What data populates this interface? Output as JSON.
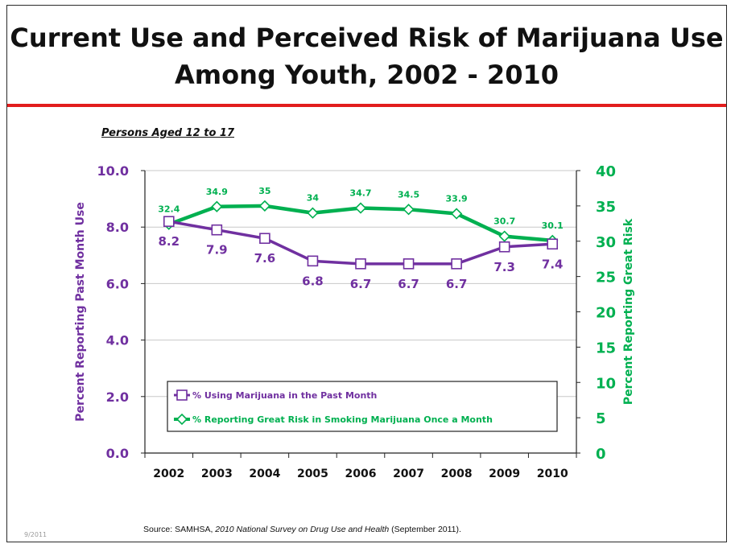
{
  "title_line1": "Current Use and Perceived Risk of Marijuana Use",
  "title_line2": "Among Youth, 2002 - 2010",
  "subtitle": "Persons Aged 12 to 17",
  "source_prefix": "Source:   SAMHSA, ",
  "source_title": "2010 National Survey on Drug Use and Health",
  "source_suffix": " (September 2011).",
  "date_stamp": "9/2011",
  "colors": {
    "purple": "#7030a0",
    "green": "#00b050",
    "gridline": "#c8c8c8",
    "title_rule": "#e21d1d"
  },
  "chart_data": {
    "type": "line",
    "categories": [
      "2002",
      "2003",
      "2004",
      "2005",
      "2006",
      "2007",
      "2008",
      "2009",
      "2010"
    ],
    "ylabel_left": "Percent Reporting Past Month Use",
    "ylabel_right": "Percent Reporting Great Risk",
    "left_axis": {
      "min": 0,
      "max": 10,
      "ticks": [
        "0.0",
        "2.0",
        "4.0",
        "6.0",
        "8.0",
        "10.0"
      ]
    },
    "right_axis": {
      "min": 0,
      "max": 40,
      "ticks": [
        "0",
        "5",
        "10",
        "15",
        "20",
        "25",
        "30",
        "35",
        "40"
      ]
    },
    "grid": true,
    "legend_position": "lower-left",
    "series": [
      {
        "name": "% Using Marijuana in the Past Month",
        "axis": "left",
        "marker": "square",
        "color": "#7030a0",
        "values": [
          8.2,
          7.9,
          7.6,
          6.8,
          6.7,
          6.7,
          6.7,
          7.3,
          7.4
        ],
        "labels": [
          "8.2",
          "7.9",
          "7.6",
          "6.8",
          "6.7",
          "6.7",
          "6.7",
          "7.3",
          "7.4"
        ]
      },
      {
        "name": "% Reporting Great Risk in Smoking Marijuana Once a Month",
        "axis": "right",
        "marker": "diamond",
        "color": "#00b050",
        "values": [
          32.4,
          34.9,
          35,
          34,
          34.7,
          34.5,
          33.9,
          30.7,
          30.1
        ],
        "labels": [
          "32.4",
          "34.9",
          "35",
          "34",
          "34.7",
          "34.5",
          "33.9",
          "30.7",
          "30.1"
        ]
      }
    ]
  }
}
